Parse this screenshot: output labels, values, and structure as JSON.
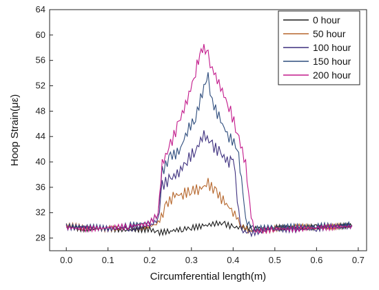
{
  "chart_data": {
    "type": "line",
    "xlabel": "Circumferential length(m)",
    "ylabel": "Hoop Strain(με)",
    "xlim": [
      -0.04,
      0.72
    ],
    "ylim": [
      26,
      64
    ],
    "xticks": [
      0.0,
      0.1,
      0.2,
      0.3,
      0.4,
      0.5,
      0.6,
      0.7
    ],
    "yticks": [
      28,
      32,
      36,
      40,
      44,
      48,
      52,
      56,
      60,
      64
    ],
    "xtick_labels": [
      "0.0",
      "0.1",
      "0.2",
      "0.3",
      "0.4",
      "0.5",
      "0.6",
      "0.7"
    ],
    "ytick_labels": [
      "28",
      "32",
      "36",
      "40",
      "44",
      "48",
      "52",
      "56",
      "60",
      "64"
    ],
    "grid": false,
    "legend_position": "top-right",
    "series": [
      {
        "name": "0 hour",
        "color": "#1a1a1a",
        "points": [
          [
            0.0,
            29.5
          ],
          [
            0.05,
            29.2
          ],
          [
            0.1,
            29.3
          ],
          [
            0.15,
            29.0
          ],
          [
            0.2,
            29.2
          ],
          [
            0.22,
            28.6
          ],
          [
            0.25,
            28.9
          ],
          [
            0.28,
            29.2
          ],
          [
            0.3,
            29.4
          ],
          [
            0.33,
            29.7
          ],
          [
            0.36,
            30.1
          ],
          [
            0.38,
            30.0
          ],
          [
            0.4,
            29.5
          ],
          [
            0.45,
            29.3
          ],
          [
            0.5,
            29.4
          ],
          [
            0.55,
            29.5
          ],
          [
            0.6,
            29.5
          ],
          [
            0.65,
            29.6
          ],
          [
            0.685,
            29.8
          ]
        ]
      },
      {
        "name": "50 hour",
        "color": "#b5652a",
        "points": [
          [
            0.0,
            30.2
          ],
          [
            0.05,
            29.8
          ],
          [
            0.1,
            29.6
          ],
          [
            0.15,
            29.8
          ],
          [
            0.2,
            30.0
          ],
          [
            0.22,
            30.4
          ],
          [
            0.24,
            33.5
          ],
          [
            0.26,
            35.0
          ],
          [
            0.28,
            35.2
          ],
          [
            0.3,
            35.8
          ],
          [
            0.32,
            36.0
          ],
          [
            0.34,
            36.8
          ],
          [
            0.36,
            35.5
          ],
          [
            0.38,
            33.8
          ],
          [
            0.4,
            32.5
          ],
          [
            0.42,
            30.0
          ],
          [
            0.44,
            29.2
          ],
          [
            0.5,
            29.6
          ],
          [
            0.55,
            30.0
          ],
          [
            0.6,
            29.8
          ],
          [
            0.65,
            30.0
          ],
          [
            0.685,
            30.0
          ]
        ]
      },
      {
        "name": "100 hour",
        "color": "#3d2f7e",
        "points": [
          [
            0.0,
            29.8
          ],
          [
            0.05,
            29.8
          ],
          [
            0.1,
            29.5
          ],
          [
            0.15,
            29.6
          ],
          [
            0.2,
            30.0
          ],
          [
            0.22,
            31.0
          ],
          [
            0.23,
            36.5
          ],
          [
            0.25,
            37.5
          ],
          [
            0.27,
            38.5
          ],
          [
            0.29,
            40.5
          ],
          [
            0.31,
            42.0
          ],
          [
            0.33,
            44.5
          ],
          [
            0.35,
            42.8
          ],
          [
            0.37,
            41.5
          ],
          [
            0.39,
            40.0
          ],
          [
            0.4,
            41.5
          ],
          [
            0.41,
            34.0
          ],
          [
            0.42,
            29.3
          ],
          [
            0.44,
            28.8
          ],
          [
            0.5,
            29.5
          ],
          [
            0.55,
            29.3
          ],
          [
            0.6,
            29.6
          ],
          [
            0.65,
            29.8
          ],
          [
            0.685,
            30.0
          ]
        ]
      },
      {
        "name": "150 hour",
        "color": "#2c4b7c",
        "points": [
          [
            0.0,
            29.6
          ],
          [
            0.05,
            29.6
          ],
          [
            0.1,
            29.3
          ],
          [
            0.15,
            29.8
          ],
          [
            0.2,
            30.3
          ],
          [
            0.22,
            31.5
          ],
          [
            0.23,
            38.0
          ],
          [
            0.25,
            40.5
          ],
          [
            0.27,
            41.0
          ],
          [
            0.29,
            44.5
          ],
          [
            0.31,
            46.5
          ],
          [
            0.33,
            51.5
          ],
          [
            0.34,
            52.8
          ],
          [
            0.35,
            49.0
          ],
          [
            0.37,
            46.0
          ],
          [
            0.39,
            43.5
          ],
          [
            0.41,
            42.0
          ],
          [
            0.42,
            37.0
          ],
          [
            0.43,
            30.5
          ],
          [
            0.45,
            29.2
          ],
          [
            0.5,
            29.6
          ],
          [
            0.55,
            29.6
          ],
          [
            0.6,
            29.7
          ],
          [
            0.65,
            29.8
          ],
          [
            0.685,
            30.0
          ]
        ]
      },
      {
        "name": "200 hour",
        "color": "#c2188a",
        "points": [
          [
            0.0,
            29.8
          ],
          [
            0.05,
            29.6
          ],
          [
            0.1,
            29.8
          ],
          [
            0.15,
            30.0
          ],
          [
            0.2,
            30.5
          ],
          [
            0.22,
            32.0
          ],
          [
            0.23,
            40.0
          ],
          [
            0.25,
            43.0
          ],
          [
            0.27,
            46.5
          ],
          [
            0.29,
            50.0
          ],
          [
            0.31,
            54.5
          ],
          [
            0.32,
            57.5
          ],
          [
            0.33,
            58.2
          ],
          [
            0.34,
            57.0
          ],
          [
            0.35,
            55.0
          ],
          [
            0.37,
            52.0
          ],
          [
            0.39,
            49.0
          ],
          [
            0.41,
            45.0
          ],
          [
            0.43,
            40.0
          ],
          [
            0.44,
            33.0
          ],
          [
            0.45,
            29.2
          ],
          [
            0.5,
            29.6
          ],
          [
            0.55,
            29.6
          ],
          [
            0.6,
            29.8
          ],
          [
            0.65,
            29.9
          ],
          [
            0.685,
            30.0
          ]
        ]
      }
    ]
  }
}
